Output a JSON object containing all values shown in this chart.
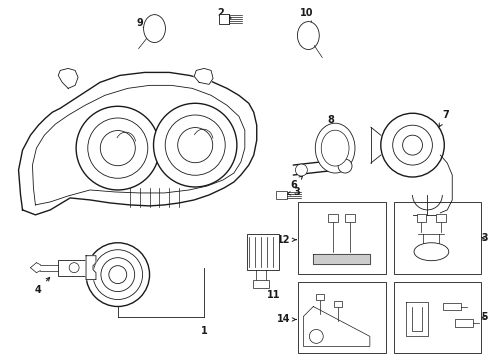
{
  "background_color": "#ffffff",
  "line_color": "#1a1a1a",
  "figsize": [
    4.89,
    3.6
  ],
  "dpi": 100,
  "label_fontsize": 7.0,
  "lw_main": 1.0,
  "lw_thin": 0.6,
  "lw_detail": 0.5
}
